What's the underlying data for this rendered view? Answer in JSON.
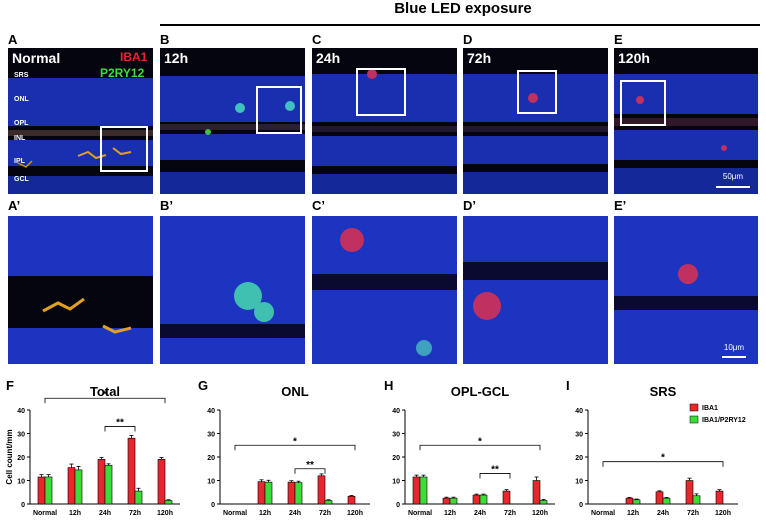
{
  "header": {
    "title": "Blue LED exposure"
  },
  "top_panels": [
    {
      "letter": "A",
      "title": "Normal"
    },
    {
      "letter": "B",
      "title": "12h"
    },
    {
      "letter": "C",
      "title": "24h"
    },
    {
      "letter": "D",
      "title": "72h"
    },
    {
      "letter": "E",
      "title": "120h"
    }
  ],
  "zoom_panels": [
    {
      "letter": "A’"
    },
    {
      "letter": "B’"
    },
    {
      "letter": "C’"
    },
    {
      "letter": "D’"
    },
    {
      "letter": "E’"
    }
  ],
  "markers": {
    "red": "IBA1",
    "green": "P2RY12"
  },
  "layers": [
    "SRS",
    "ONL",
    "OPL",
    "INL",
    "IPL",
    "GCL"
  ],
  "scale_top": "50μm",
  "scale_bottom": "10μm",
  "colors": {
    "iba1": "#e8262b",
    "p2ry12": "#3ddc3a"
  },
  "chart_data": [
    {
      "letter": "F",
      "type": "bar",
      "title": "Total",
      "categories": [
        "Normal",
        "12h",
        "24h",
        "72h",
        "120h"
      ],
      "ylabel": "Cell count/mm",
      "ylim": [
        0,
        40
      ],
      "yticks": [
        0,
        10,
        20,
        30,
        40
      ],
      "series": [
        {
          "name": "IBA1",
          "values": [
            11.5,
            15.5,
            19,
            28,
            19
          ],
          "errors": [
            1,
            1.5,
            0.8,
            1.2,
            0.8
          ]
        },
        {
          "name": "IBA1/P2RY12",
          "values": [
            11.5,
            14.5,
            16.5,
            5.5,
            1.5
          ],
          "errors": [
            1,
            1.5,
            0.6,
            1.2,
            0.3
          ]
        }
      ],
      "significance": [
        {
          "from": 0,
          "to": 4,
          "level": 45,
          "label": "*"
        },
        {
          "from": 2,
          "to": 3,
          "level": 33,
          "label": "**"
        }
      ]
    },
    {
      "letter": "G",
      "type": "bar",
      "title": "ONL",
      "categories": [
        "Normal",
        "12h",
        "24h",
        "72h",
        "120h"
      ],
      "ylim": [
        0,
        40
      ],
      "yticks": [
        0,
        10,
        20,
        30,
        40
      ],
      "series": [
        {
          "name": "IBA1",
          "values": [
            0,
            9.5,
            9.3,
            12,
            3.3
          ],
          "errors": [
            0,
            0.8,
            0.6,
            0.8,
            0.3
          ]
        },
        {
          "name": "IBA1/P2RY12",
          "values": [
            0,
            9.3,
            9.1,
            1.5,
            0
          ],
          "errors": [
            0,
            0.8,
            0.6,
            0.3,
            0
          ]
        }
      ],
      "significance": [
        {
          "from": 0,
          "to": 4,
          "level": 25,
          "label": "*"
        },
        {
          "from": 2,
          "to": 3,
          "level": 15,
          "label": "**"
        }
      ]
    },
    {
      "letter": "H",
      "type": "bar",
      "title": "OPL-GCL",
      "categories": [
        "Normal",
        "12h",
        "24h",
        "72h",
        "120h"
      ],
      "ylim": [
        0,
        40
      ],
      "yticks": [
        0,
        10,
        20,
        30,
        40
      ],
      "series": [
        {
          "name": "IBA1",
          "values": [
            11.5,
            2.5,
            3.8,
            5.5,
            10
          ],
          "errors": [
            0.8,
            0.4,
            0.4,
            0.6,
            1.5
          ]
        },
        {
          "name": "IBA1/P2RY12",
          "values": [
            11.5,
            2.5,
            3.8,
            0,
            1.5
          ],
          "errors": [
            0.8,
            0.4,
            0.4,
            0,
            0.4
          ]
        }
      ],
      "significance": [
        {
          "from": 0,
          "to": 4,
          "level": 25,
          "label": "*"
        },
        {
          "from": 2,
          "to": 3,
          "level": 13,
          "label": "**"
        }
      ]
    },
    {
      "letter": "I",
      "type": "bar",
      "title": "SRS",
      "categories": [
        "Normal",
        "12h",
        "24h",
        "72h",
        "120h"
      ],
      "ylim": [
        0,
        40
      ],
      "yticks": [
        0,
        10,
        20,
        30,
        40
      ],
      "series": [
        {
          "name": "IBA1",
          "values": [
            0,
            2.5,
            5.2,
            10,
            5.5
          ],
          "errors": [
            0,
            0.3,
            0.4,
            1,
            0.6
          ]
        },
        {
          "name": "IBA1/P2RY12",
          "values": [
            0,
            1.8,
            2.5,
            3.5,
            0
          ],
          "errors": [
            0,
            0.3,
            0.3,
            0.8,
            0
          ]
        }
      ],
      "significance": [
        {
          "from": 0,
          "to": 4,
          "level": 18,
          "label": "*"
        }
      ],
      "legend": [
        "IBA1",
        "IBA1/P2RY12"
      ]
    }
  ]
}
